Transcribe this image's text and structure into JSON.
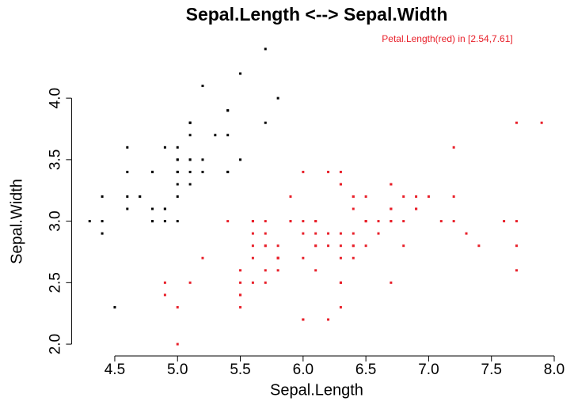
{
  "chart_data": {
    "type": "scatter",
    "title": "Sepal.Length <--> Sepal.Width",
    "annotation": "Petal.Length(red) in [2.54,7.61]",
    "annotation_color": "#e8202a",
    "xlabel": "Sepal.Length",
    "ylabel": "Sepal.Width",
    "xlim": [
      4.156,
      8.044
    ],
    "ylim": [
      1.904,
      4.496
    ],
    "xticks": [
      4.5,
      {
        "value": 5,
        "label": "5.0"
      },
      5.5,
      {
        "value": 6,
        "label": "6.0"
      },
      6.5,
      {
        "value": 7,
        "label": "7.0"
      },
      7.5,
      {
        "value": 8,
        "label": "8.0"
      }
    ],
    "yticks": [
      {
        "value": 2,
        "label": "2.0"
      },
      2.5,
      {
        "value": 3,
        "label": "3.0"
      },
      3.5,
      {
        "value": 4,
        "label": "4.0"
      }
    ],
    "grid": false,
    "series": [
      {
        "color": "#000000",
        "x": [
          5.1,
          4.9,
          4.7,
          4.6,
          5.0,
          5.4,
          4.6,
          5.0,
          4.4,
          4.9,
          5.4,
          4.8,
          4.8,
          4.3,
          5.8,
          5.7,
          5.4,
          5.1,
          5.7,
          5.1,
          5.4,
          5.1,
          4.6,
          5.1,
          4.8,
          5.0,
          5.0,
          5.2,
          5.2,
          4.7,
          4.8,
          5.4,
          5.2,
          5.5,
          4.9,
          5.0,
          5.5,
          4.9,
          4.4,
          5.1,
          5.0,
          4.5,
          4.4,
          5.0,
          5.1,
          4.8,
          5.1,
          4.6,
          5.3,
          5.0
        ],
        "y": [
          3.5,
          3.0,
          3.2,
          3.1,
          3.6,
          3.9,
          3.4,
          3.4,
          2.9,
          3.1,
          3.7,
          3.4,
          3.0,
          3.0,
          4.0,
          4.4,
          3.9,
          3.5,
          3.8,
          3.8,
          3.4,
          3.7,
          3.6,
          3.3,
          3.4,
          3.0,
          3.4,
          3.5,
          3.4,
          3.2,
          3.1,
          3.4,
          4.1,
          4.2,
          3.1,
          3.2,
          3.5,
          3.6,
          3.0,
          3.4,
          3.5,
          2.3,
          3.2,
          3.5,
          3.8,
          3.0,
          3.8,
          3.2,
          3.7,
          3.3
        ]
      },
      {
        "color": "#e8202a",
        "x": [
          7.0,
          6.4,
          6.9,
          5.5,
          6.5,
          5.7,
          6.3,
          4.9,
          6.6,
          5.2,
          5.0,
          5.9,
          6.0,
          6.1,
          5.6,
          6.7,
          5.6,
          5.8,
          6.2,
          5.6,
          5.9,
          6.1,
          6.3,
          6.1,
          6.4,
          6.6,
          6.8,
          6.7,
          6.0,
          5.7,
          5.5,
          5.5,
          5.8,
          6.0,
          5.4,
          6.0,
          6.7,
          6.3,
          5.6,
          5.5,
          5.5,
          6.1,
          5.8,
          5.0,
          5.6,
          5.7,
          5.7,
          6.2,
          5.1,
          5.7,
          6.3,
          5.8,
          7.1,
          6.3,
          6.5,
          7.6,
          4.9,
          7.3,
          6.7,
          7.2,
          6.5,
          6.4,
          6.8,
          5.7,
          5.8,
          6.4,
          6.5,
          7.7,
          7.7,
          6.0,
          6.9,
          5.6,
          7.7,
          6.3,
          6.7,
          7.2,
          6.2,
          6.1,
          6.4,
          7.2,
          7.4,
          7.9,
          6.4,
          6.3,
          6.1,
          7.7,
          6.3,
          6.4,
          6.0,
          6.9,
          6.7,
          6.9,
          5.8,
          6.8,
          6.7,
          6.7,
          6.3,
          6.5,
          6.2,
          5.9
        ],
        "y": [
          3.2,
          3.2,
          3.1,
          2.3,
          2.8,
          2.8,
          3.3,
          2.4,
          2.9,
          2.7,
          2.0,
          3.0,
          2.2,
          2.9,
          2.9,
          3.1,
          3.0,
          2.7,
          2.2,
          2.5,
          3.2,
          2.8,
          2.5,
          2.8,
          2.9,
          3.0,
          2.8,
          3.0,
          2.9,
          2.6,
          2.4,
          2.4,
          2.7,
          2.7,
          3.0,
          3.4,
          3.1,
          2.3,
          3.0,
          2.5,
          2.6,
          3.0,
          2.6,
          2.3,
          2.7,
          3.0,
          2.9,
          2.9,
          2.5,
          2.8,
          3.3,
          2.7,
          3.0,
          2.9,
          3.0,
          3.0,
          2.5,
          2.9,
          2.5,
          3.6,
          3.2,
          2.7,
          3.0,
          2.5,
          2.8,
          3.2,
          3.0,
          3.8,
          2.6,
          2.2,
          3.2,
          2.8,
          2.8,
          2.7,
          3.3,
          3.2,
          2.8,
          3.0,
          2.8,
          3.0,
          2.8,
          3.8,
          2.8,
          2.8,
          2.6,
          3.0,
          3.4,
          3.1,
          3.0,
          3.1,
          3.1,
          3.1,
          2.7,
          3.2,
          3.3,
          3.0,
          2.5,
          3.0,
          3.4,
          3.0
        ]
      }
    ]
  }
}
